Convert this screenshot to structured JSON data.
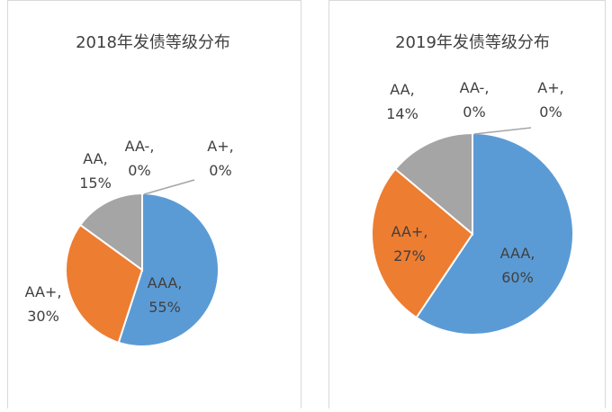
{
  "chart_data": [
    {
      "type": "pie",
      "title": "2018年发债等级分布",
      "categories": [
        "AAA",
        "AA+",
        "AA",
        "AA-",
        "A+"
      ],
      "values": [
        55,
        30,
        15,
        0,
        0
      ],
      "value_labels": [
        "55%",
        "30%",
        "15%",
        "0%",
        "0%"
      ],
      "colors": [
        "#5b9bd5",
        "#ed7d31",
        "#a5a5a5",
        "#ffc000",
        "#4472c4"
      ]
    },
    {
      "type": "pie",
      "title": "2019年发债等级分布",
      "categories": [
        "AAA",
        "AA+",
        "AA",
        "AA-",
        "A+"
      ],
      "values": [
        60,
        27,
        14,
        0,
        0
      ],
      "value_labels": [
        "60%",
        "27%",
        "14%",
        "0%",
        "0%"
      ],
      "colors": [
        "#5b9bd5",
        "#ed7d31",
        "#a5a5a5",
        "#ffc000",
        "#4472c4"
      ]
    }
  ]
}
